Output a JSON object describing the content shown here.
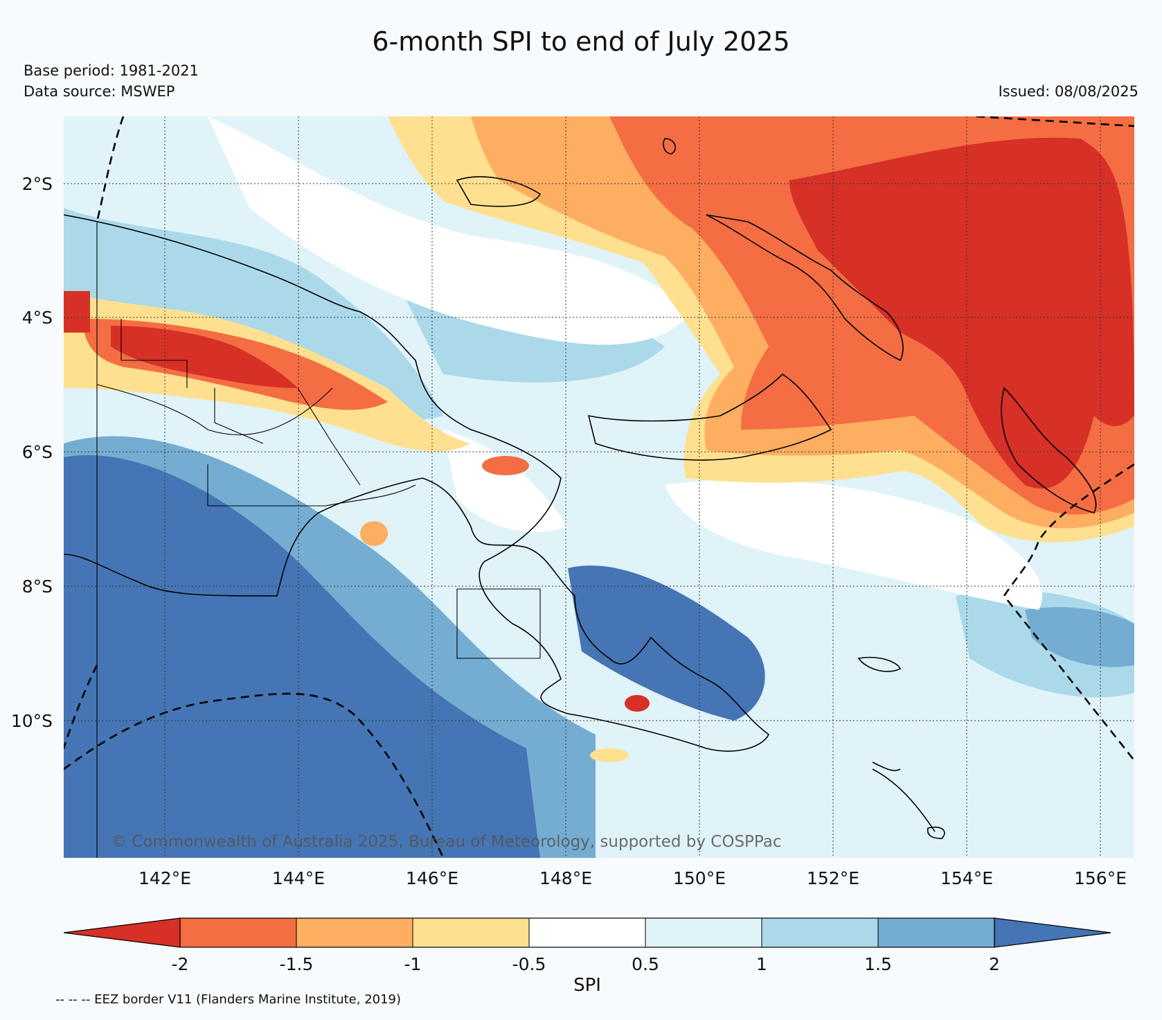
{
  "header": {
    "title": "6-month SPI to end of July 2025",
    "base_period": "Base period: 1981-2021",
    "data_source": "Data source: MSWEP",
    "issued": "Issued: 08/08/2025"
  },
  "map": {
    "lat_labels": [
      "2°S",
      "4°S",
      "6°S",
      "8°S",
      "10°S"
    ],
    "lon_labels": [
      "142°E",
      "144°E",
      "146°E",
      "148°E",
      "150°E",
      "152°E",
      "154°E",
      "156°E"
    ],
    "copyright": "© Commonwealth of Australia 2025, Bureau of Meteorology, supported by COSPPac",
    "gridlines": true,
    "region": "Papua New Guinea"
  },
  "colorbar": {
    "label": "SPI",
    "ticks": [
      "-2",
      "-1.5",
      "-1",
      "-0.5",
      "0.5",
      "1",
      "1.5",
      "2"
    ],
    "colors": [
      "#d73027",
      "#f46d43",
      "#fdae61",
      "#fee090",
      "#ffffff",
      "#e0f3f8",
      "#abd9e9",
      "#74add1",
      "#4575b4"
    ]
  },
  "footer": {
    "eez_note": "-- -- -- EEZ border V11 (Flanders Marine Institute, 2019)"
  }
}
